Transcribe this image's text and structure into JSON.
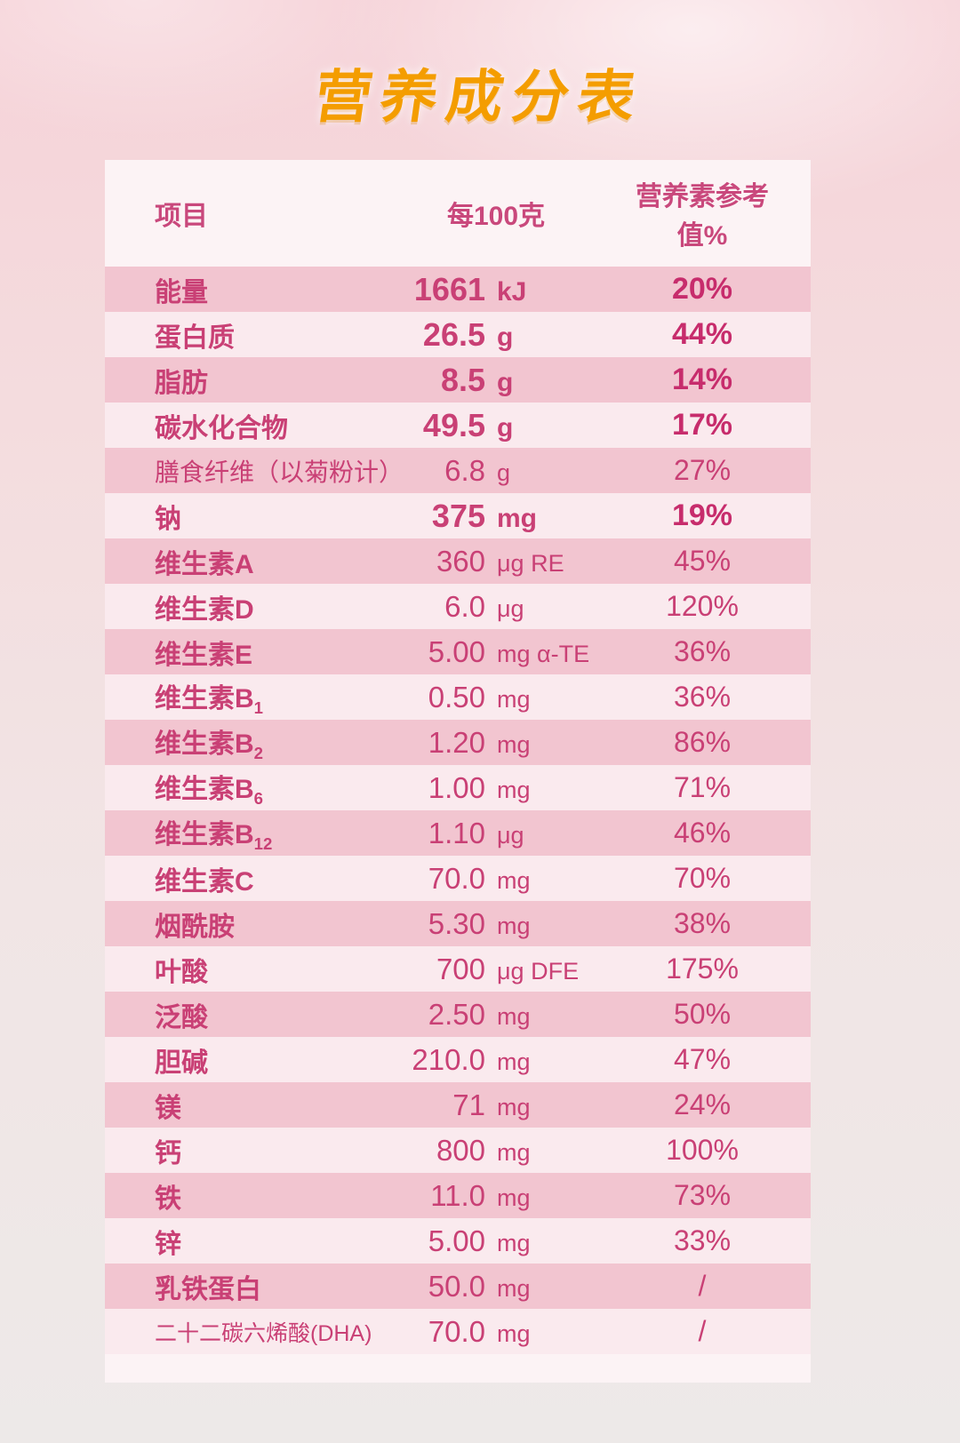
{
  "page": {
    "title": "营养成分表"
  },
  "table": {
    "headers": [
      "项目",
      "每100克",
      "营养素参考值%"
    ],
    "rows": [
      {
        "name": "能量",
        "value": "1661",
        "unit": "kJ",
        "nrv": "20%",
        "bold": true
      },
      {
        "name": "蛋白质",
        "value": "26.5",
        "unit": "g",
        "nrv": "44%",
        "bold": true
      },
      {
        "name": "脂肪",
        "value": "8.5",
        "unit": "g",
        "nrv": "14%",
        "bold": true
      },
      {
        "name": "碳水化合物",
        "value": "49.5",
        "unit": "g",
        "nrv": "17%",
        "bold": true
      },
      {
        "name": "膳食纤维（以菊粉计）",
        "value": "6.8",
        "unit": "g",
        "nrv": "27%",
        "plain": true
      },
      {
        "name": "钠",
        "value": "375",
        "unit": "mg",
        "nrv": "19%",
        "bold": true
      },
      {
        "name": "维生素A",
        "value": "360",
        "unit": "μg RE",
        "nrv": "45%"
      },
      {
        "name": "维生素D",
        "value": "6.0",
        "unit": "μg",
        "nrv": "120%"
      },
      {
        "name": "维生素E",
        "value": "5.00",
        "unit": "mg α-TE",
        "nrv": "36%"
      },
      {
        "name": "维生素B",
        "sub": "1",
        "value": "0.50",
        "unit": "mg",
        "nrv": "36%"
      },
      {
        "name": "维生素B",
        "sub": "2",
        "value": "1.20",
        "unit": "mg",
        "nrv": "86%"
      },
      {
        "name": "维生素B",
        "sub": "6",
        "value": "1.00",
        "unit": "mg",
        "nrv": "71%"
      },
      {
        "name": "维生素B",
        "sub": "12",
        "value": "1.10",
        "unit": "μg",
        "nrv": "46%"
      },
      {
        "name": "维生素C",
        "value": "70.0",
        "unit": "mg",
        "nrv": "70%"
      },
      {
        "name": "烟酰胺",
        "value": "5.30",
        "unit": "mg",
        "nrv": "38%"
      },
      {
        "name": "叶酸",
        "value": "700",
        "unit": "μg DFE",
        "nrv": "175%"
      },
      {
        "name": "泛酸",
        "value": "2.50",
        "unit": "mg",
        "nrv": "50%"
      },
      {
        "name": "胆碱",
        "value": "210.0",
        "unit": "mg",
        "nrv": "47%"
      },
      {
        "name": "镁",
        "value": "71",
        "unit": "mg",
        "nrv": "24%"
      },
      {
        "name": "钙",
        "value": "800",
        "unit": "mg",
        "nrv": "100%"
      },
      {
        "name": "铁",
        "value": "11.0",
        "unit": "mg",
        "nrv": "73%"
      },
      {
        "name": "锌",
        "value": "5.00",
        "unit": "mg",
        "nrv": "33%"
      },
      {
        "name": "乳铁蛋白",
        "value": "50.0",
        "unit": "mg",
        "nrv": "/"
      },
      {
        "name": "二十二碳六烯酸(DHA)",
        "value": "70.0",
        "unit": "mg",
        "nrv": "/",
        "plain": true,
        "small": true
      }
    ]
  },
  "colors": {
    "title_orange": "#F49D00",
    "text_pink": "#C94075",
    "text_pink_bold": "#C72C6C",
    "row_dark": "#F2C5D0",
    "row_light": "#FAEAEE",
    "card_bg": "#FCF3F5"
  }
}
